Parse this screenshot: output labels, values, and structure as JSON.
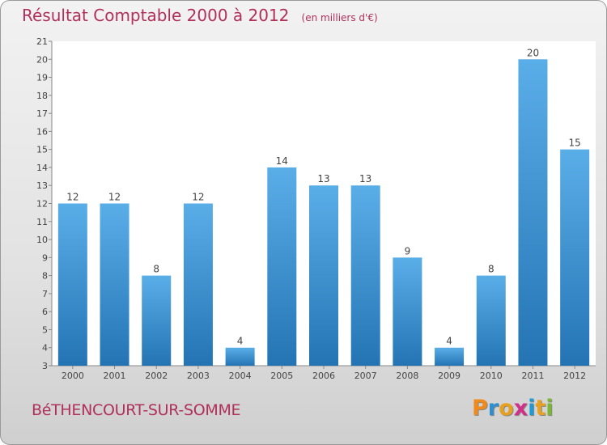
{
  "title": "Résultat Comptable 2000 à 2012",
  "unit": "(en milliers d'€)",
  "commune": "BéTHENCOURT-SUR-SOMME",
  "brand": {
    "letters": [
      "P",
      "r",
      "o",
      "x",
      "i",
      "t",
      "i"
    ],
    "colors": [
      "#f08a1c",
      "#2e8fd0",
      "#e8a020",
      "#d0308a",
      "#1e9bd7",
      "#e8a020",
      "#7ab830"
    ]
  },
  "colors": {
    "bar_top": "#5aaee8",
    "bar_bottom": "#2474b4",
    "title": "#b0305a"
  },
  "chart_data": {
    "type": "bar",
    "categories": [
      "2000",
      "2001",
      "2002",
      "2003",
      "2004",
      "2005",
      "2006",
      "2007",
      "2008",
      "2009",
      "2010",
      "2011",
      "2012"
    ],
    "values": [
      12,
      12,
      8,
      12,
      4,
      14,
      13,
      13,
      9,
      4,
      8,
      20,
      15
    ],
    "ylim": [
      3,
      21
    ],
    "yticks": [
      3,
      4,
      5,
      6,
      7,
      8,
      9,
      10,
      11,
      12,
      13,
      14,
      15,
      16,
      17,
      18,
      19,
      20,
      21
    ],
    "grid": false,
    "data_labels": true
  }
}
